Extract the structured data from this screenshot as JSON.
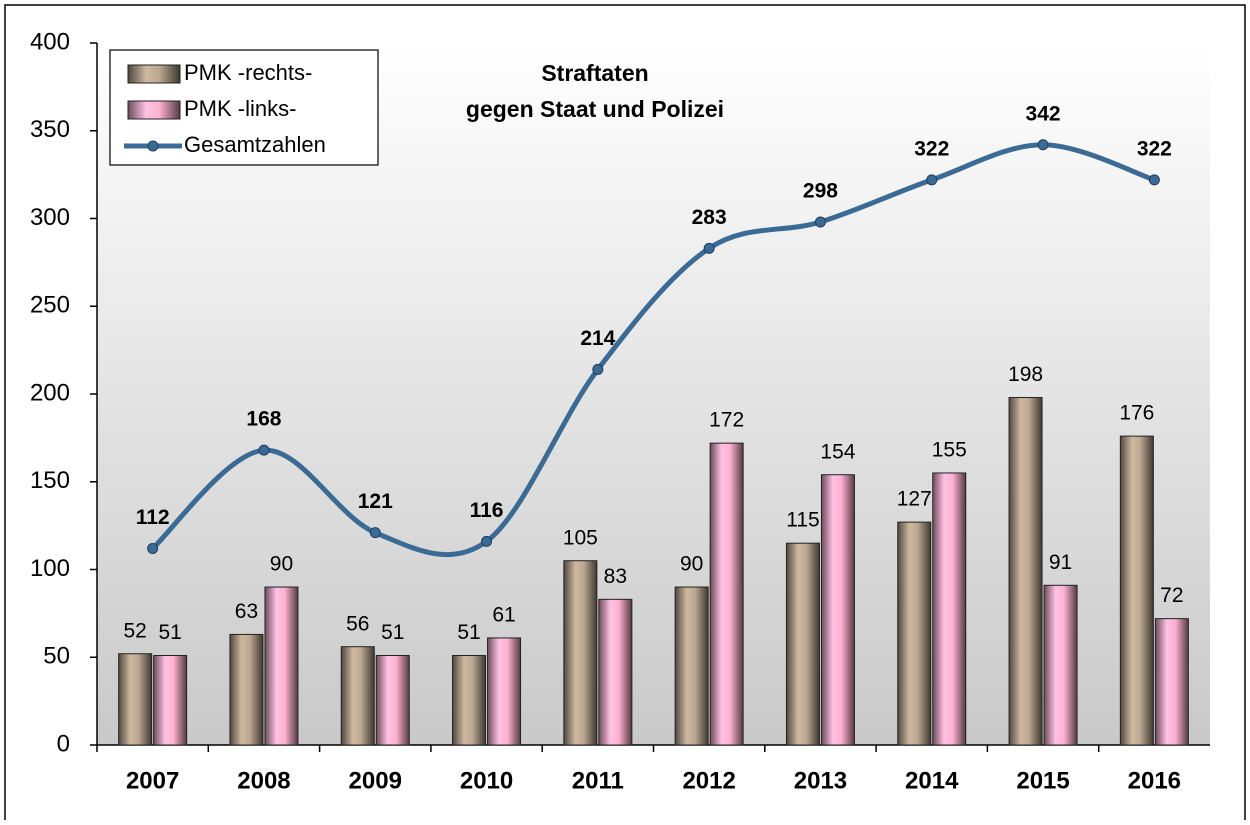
{
  "chart_data": {
    "type": "bar",
    "title": "Straftaten",
    "subtitle": "gegen Staat und Polizei",
    "categories": [
      "2007",
      "2008",
      "2009",
      "2010",
      "2011",
      "2012",
      "2013",
      "2014",
      "2015",
      "2016"
    ],
    "series": [
      {
        "name": "PMK -rechts-",
        "color": "#b3a08b",
        "values": [
          52,
          63,
          56,
          51,
          105,
          90,
          115,
          127,
          198,
          176
        ]
      },
      {
        "name": "PMK -links-",
        "color": "#f2a9c6",
        "values": [
          51,
          90,
          51,
          61,
          83,
          172,
          154,
          155,
          91,
          72
        ]
      },
      {
        "name": "Gesamtzahlen",
        "type": "line",
        "color": "#3b6b95",
        "values": [
          112,
          168,
          121,
          116,
          214,
          283,
          298,
          322,
          342,
          322
        ]
      }
    ],
    "ylim": [
      0,
      400
    ],
    "yticks": [
      0,
      50,
      100,
      150,
      200,
      250,
      300,
      350,
      400
    ],
    "grid": false,
    "legend": "top-left"
  }
}
